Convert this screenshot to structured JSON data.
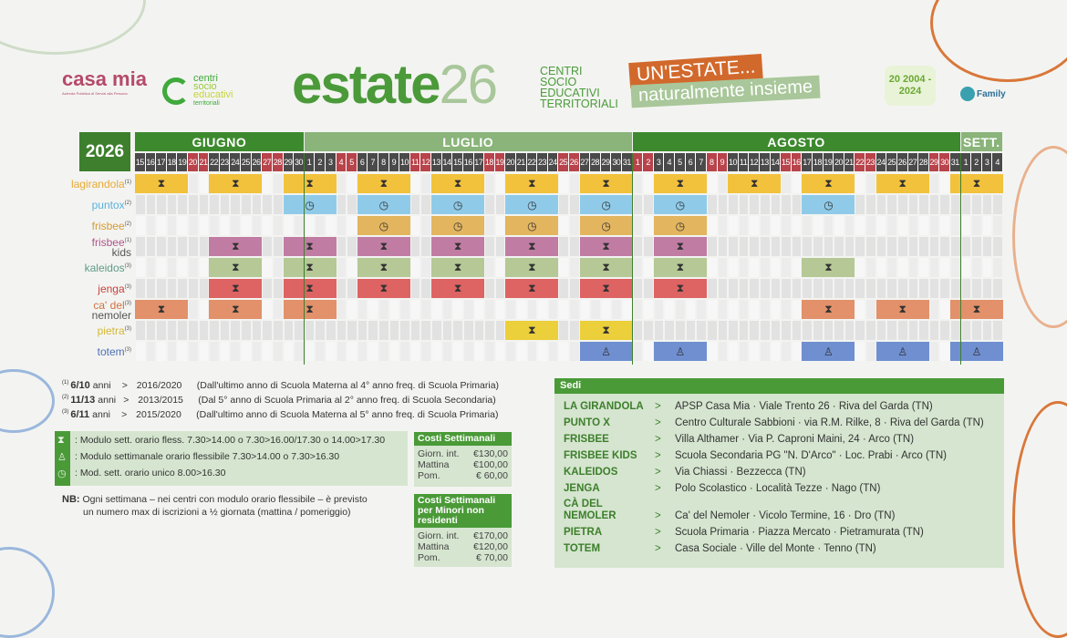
{
  "header": {
    "casa_mia_logo": "casa mia",
    "casa_mia_sub": "Azienda Pubblica di Servizi alla Persona",
    "centri_logo": [
      "centri",
      "socio",
      "educativi",
      "territoriali"
    ],
    "estate": "estate",
    "year26": "26",
    "centri_title": [
      "CENTRI",
      "SOCIO",
      "EDUCATIVI",
      "TERRITORIALI"
    ],
    "slogan_top": "UN'ESTATE...",
    "slogan_bottom": "naturalmente insieme",
    "anniversary_logo": "20 2004 - 2024",
    "family_logo": "Family"
  },
  "calendar": {
    "year": "2026",
    "months": [
      {
        "name": "GIUGNO",
        "month": 6,
        "from": 15,
        "to": 30,
        "color": "#3d8a2e"
      },
      {
        "name": "LUGLIO",
        "month": 7,
        "from": 1,
        "to": 31,
        "color": "#8ab47a"
      },
      {
        "name": "AGOSTO",
        "month": 8,
        "from": 1,
        "to": 31,
        "color": "#3d8a2e"
      },
      {
        "name": "SETT.",
        "month": 9,
        "from": 1,
        "to": 4,
        "color": "#8ab47a"
      }
    ],
    "weekend_days": {
      "6": [
        20,
        21,
        27,
        28
      ],
      "7": [
        4,
        5,
        11,
        12,
        18,
        19,
        25,
        26
      ],
      "8": [
        1,
        2,
        8,
        9,
        15,
        16,
        22,
        23,
        29,
        30
      ],
      "9": []
    },
    "weekday_color": "#4a4a4a",
    "weekend_color": "#b8434b",
    "rows": [
      {
        "prefix": "la",
        "name": "girandola",
        "sup": "(1)",
        "color": "#f2c23c",
        "label_color": "#e8a935",
        "icon": "hourglass-icon",
        "weeks": [
          "6-15",
          "6-22",
          "6-29",
          "7-6",
          "7-13",
          "7-20",
          "7-27",
          "8-3",
          "8-10",
          "8-17",
          "8-24",
          "8-31"
        ]
      },
      {
        "prefix": "",
        "name": "puntox",
        "sup": "(2)",
        "color": "#8fcbe9",
        "label_color": "#5bb0dc",
        "icon": "clock-icon",
        "weeks": [
          "6-29",
          "7-6",
          "7-13",
          "7-20",
          "7-27",
          "8-3",
          "8-17"
        ]
      },
      {
        "prefix": "",
        "name": "frisbee",
        "sup": "(2)",
        "color": "#e3b55f",
        "label_color": "#d49a35",
        "icon": "clock-icon",
        "weeks": [
          "7-6",
          "7-13",
          "7-20",
          "7-27",
          "8-3"
        ]
      },
      {
        "prefix": "",
        "name": "frisbee",
        "name2": "kids",
        "sup": "(1)",
        "color": "#c17ca4",
        "label_color": "#b0558c",
        "icon": "hourglass-icon",
        "weeks": [
          "6-22",
          "6-29",
          "7-6",
          "7-13",
          "7-20",
          "7-27",
          "8-3"
        ]
      },
      {
        "prefix": "",
        "name": "kaleidos",
        "sup": "(3)",
        "color": "#b5c895",
        "label_color": "#5f9a8a",
        "icon": "hourglass-icon",
        "weeks": [
          "6-22",
          "6-29",
          "7-6",
          "7-13",
          "7-20",
          "7-27",
          "8-3",
          "8-17"
        ]
      },
      {
        "prefix": "",
        "name": "jenga",
        "sup": "(3)",
        "color": "#de6363",
        "label_color": "#c8413f",
        "icon": "hourglass-icon",
        "weeks": [
          "6-22",
          "6-29",
          "7-6",
          "7-13",
          "7-20",
          "7-27",
          "8-3"
        ]
      },
      {
        "prefix": "",
        "name": "ca' del",
        "name2": "nemoler",
        "sup": "(3)",
        "color": "#e2916b",
        "label_color": "#d0703f",
        "icon": "hourglass-icon",
        "weeks": [
          "6-15",
          "6-22",
          "6-29",
          "8-17",
          "8-24",
          "8-31"
        ]
      },
      {
        "prefix": "",
        "name": "pietra",
        "sup": "(3)",
        "color": "#ebcf3b",
        "label_color": "#d6b73a",
        "icon": "hourglass-icon",
        "weeks": [
          "7-20",
          "7-27"
        ]
      },
      {
        "prefix": "",
        "name": "totem",
        "sup": "(3)",
        "color": "#6f8fd1",
        "label_color": "#4d6fb8",
        "icon": "bag-icon",
        "weeks": [
          "7-27",
          "8-3",
          "8-17",
          "8-24",
          "8-31"
        ]
      }
    ]
  },
  "ages": [
    {
      "sup": "(1)",
      "age": "6/10",
      "unit": "anni",
      "sep": ">",
      "years": "2016/2020",
      "desc": "(Dall'ultimo anno di Scuola Materna al 4° anno freq. di Scuola Primaria)"
    },
    {
      "sup": "(2)",
      "age": "11/13",
      "unit": "anni",
      "sep": ">",
      "years": "2013/2015",
      "desc": "(Dal 5° anno di Scuola Primaria al 2° anno freq. di Scuola Secondaria)"
    },
    {
      "sup": "(3)",
      "age": "6/11",
      "unit": "anni",
      "sep": ">",
      "years": "2015/2020",
      "desc": "(Dall'ultimo anno di Scuola Materna al 5° anno freq. di Scuola Primaria)"
    }
  ],
  "legend": [
    {
      "icon": "hourglass-icon",
      "text": ": Modulo sett. orario fless. 7.30>14.00 o 7.30>16.00/17.30 o 14.00>17.30"
    },
    {
      "icon": "bag-icon",
      "text": ": Modulo settimanale orario flessibile 7.30>14.00 o 7.30>16.30"
    },
    {
      "icon": "clock-icon",
      "text": ": Mod. sett. orario unico 8.00>16.30"
    }
  ],
  "nb": {
    "label": "NB:",
    "line1": "Ogni settimana – nei centri con modulo orario flessibile – è previsto",
    "line2": "un numero max di iscrizioni a ½ giornata (mattina / pomeriggio)"
  },
  "costs": [
    {
      "title": "Costi Settimanali",
      "rows": [
        [
          "Giorn. int.",
          "€130,00"
        ],
        [
          "Mattina",
          "€100,00"
        ],
        [
          "Pom.",
          "€ 60,00"
        ]
      ]
    },
    {
      "title": "Costi Settimanali per Minori non residenti",
      "rows": [
        [
          "Giorn. int.",
          "€170,00"
        ],
        [
          "Mattina",
          "€120,00"
        ],
        [
          "Pom.",
          "€ 70,00"
        ]
      ]
    }
  ],
  "sedi": {
    "title": "Sedi",
    "items": [
      {
        "name": "LA GIRANDOLA",
        "sep": ">",
        "addr": "APSP Casa Mia · Viale Trento 26 · Riva del Garda (TN)"
      },
      {
        "name": "PUNTO X",
        "sep": ">",
        "addr": "Centro Culturale Sabbioni · via R.M. Rilke, 8 · Riva del Garda (TN)"
      },
      {
        "name": "FRISBEE",
        "sep": ">",
        "addr": "Villa Althamer · Via P. Caproni Maini, 24 · Arco (TN)"
      },
      {
        "name": "FRISBEE KIDS",
        "sep": ">",
        "addr": "Scuola Secondaria PG \"N. D'Arco\" · Loc. Prabi · Arco (TN)"
      },
      {
        "name": "KALEIDOS",
        "sep": ">",
        "addr": "Via Chiassi · Bezzecca (TN)"
      },
      {
        "name": "JENGA",
        "sep": ">",
        "addr": "Polo Scolastico · Località Tezze · Nago (TN)"
      },
      {
        "name": "CÀ DEL NEMOLER",
        "sep": ">",
        "addr": "Ca' del Nemoler · Vicolo Termine, 16 · Dro (TN)"
      },
      {
        "name": "PIETRA",
        "sep": ">",
        "addr": "Scuola Primaria · Piazza Mercato · Pietramurata (TN)"
      },
      {
        "name": "TOTEM",
        "sep": ">",
        "addr": "Casa Sociale · Ville del Monte · Tenno (TN)"
      }
    ]
  }
}
